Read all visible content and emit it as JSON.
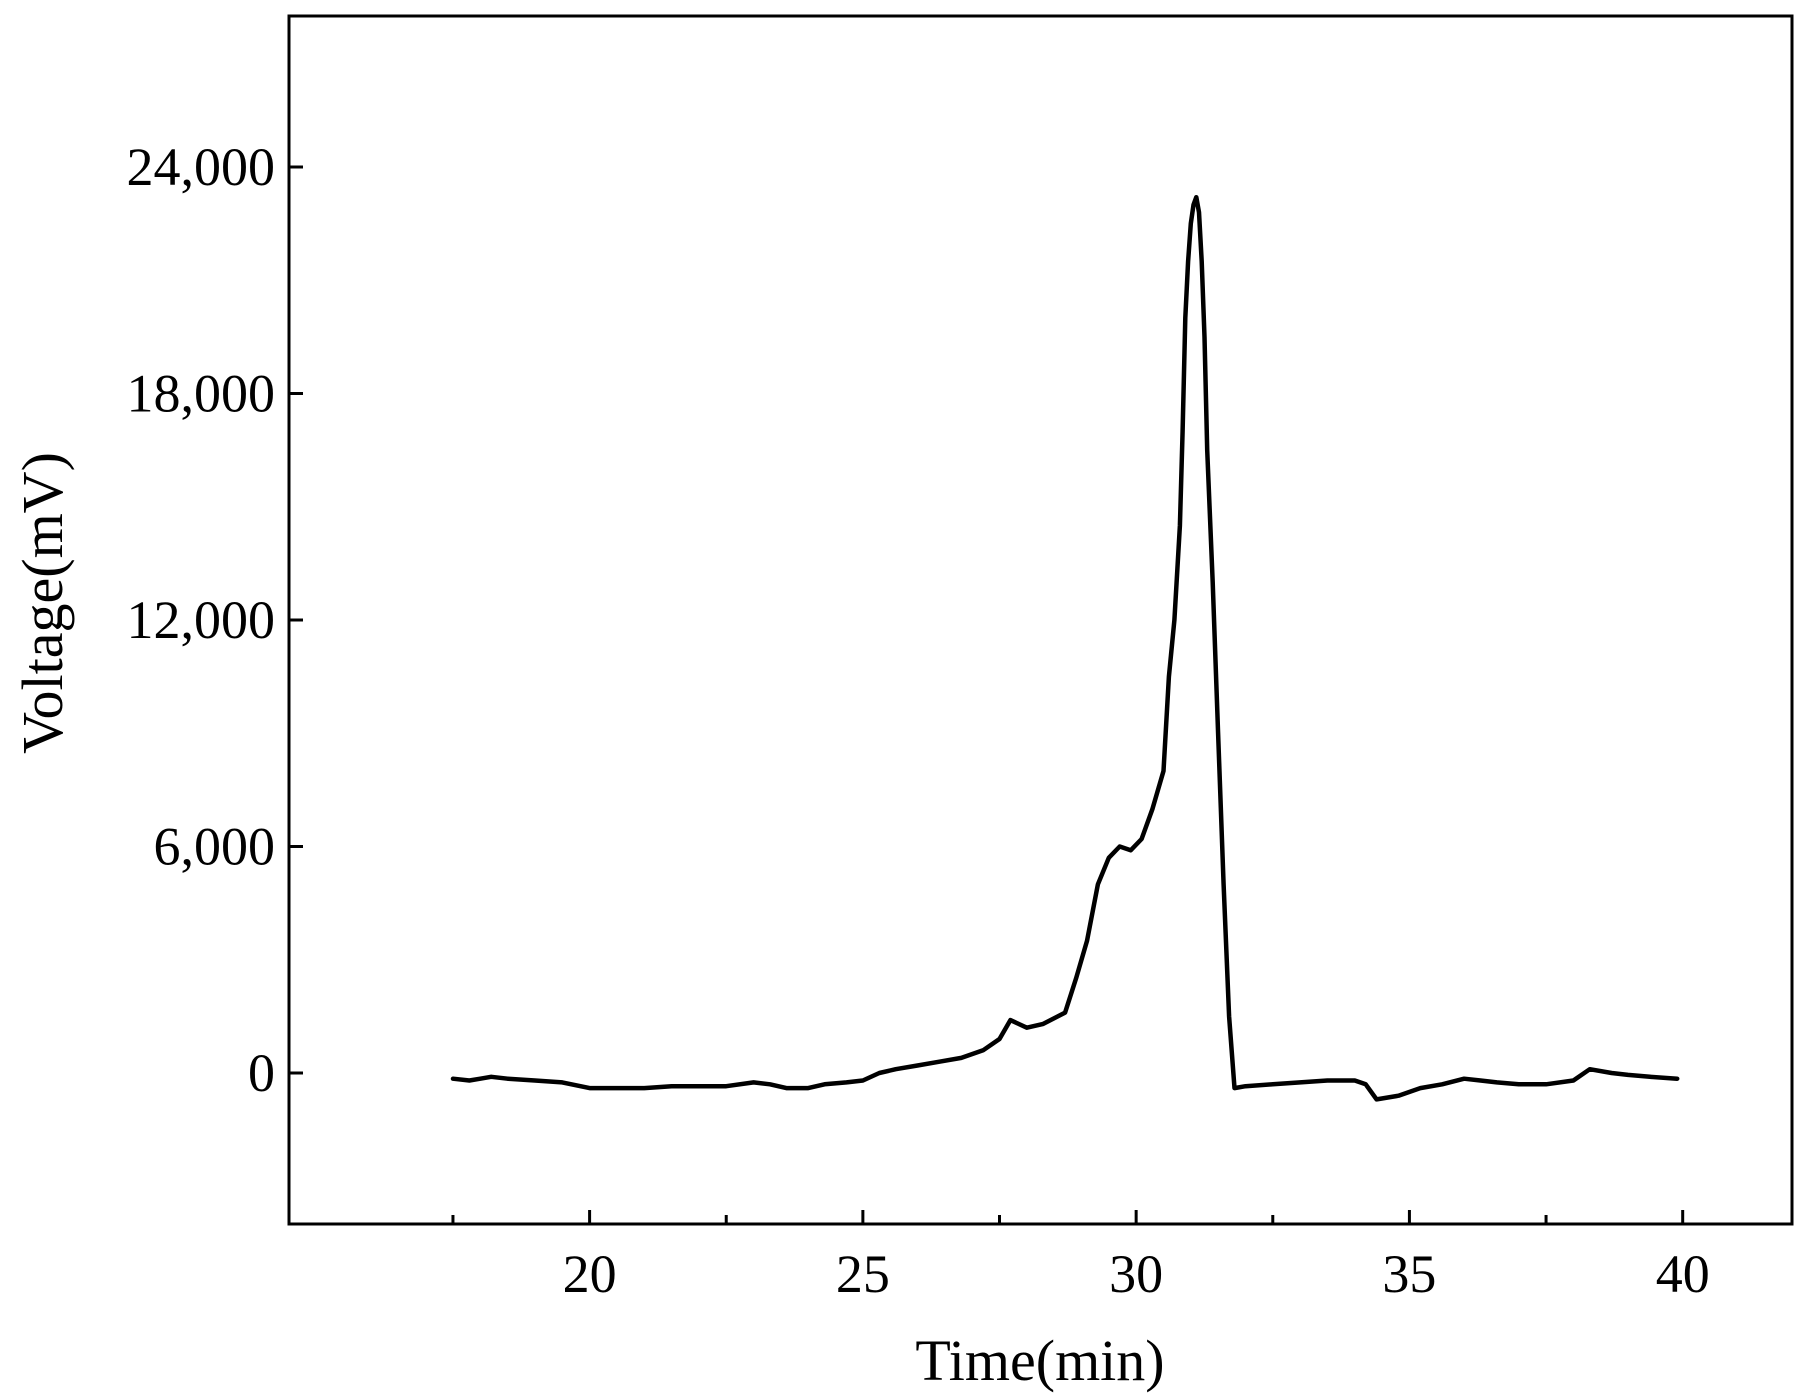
{
  "chart_data": {
    "type": "line",
    "title": "",
    "xlabel": "Time(min)",
    "ylabel": "Voltage(mV)",
    "xlim": [
      14.5,
      42
    ],
    "ylim": [
      -4000,
      28000
    ],
    "x_ticks": [
      20,
      25,
      30,
      35,
      40
    ],
    "x_tick_labels": [
      "20",
      "25",
      "30",
      "35",
      "40"
    ],
    "x_minor_ticks": [
      17.5,
      22.5,
      27.5,
      32.5,
      37.5
    ],
    "y_ticks": [
      0,
      6000,
      12000,
      18000,
      24000
    ],
    "y_tick_labels": [
      "0",
      "6,000",
      "12,000",
      "18,000",
      "24,000"
    ],
    "grid": false,
    "line_color": "#000000",
    "series": [
      {
        "x": [
          17.5,
          17.8,
          18.0,
          18.2,
          18.5,
          19.0,
          19.5,
          20.0,
          20.5,
          21.0,
          21.5,
          22.0,
          22.5,
          23.0,
          23.3,
          23.6,
          24.0,
          24.3,
          24.7,
          25.0,
          25.3,
          25.6,
          26.0,
          26.4,
          26.8,
          27.2,
          27.5,
          27.7,
          28.0,
          28.3,
          28.7,
          28.9,
          29.1,
          29.3,
          29.5,
          29.7,
          29.9,
          30.1,
          30.3,
          30.5,
          30.6,
          30.7,
          30.8,
          30.85,
          30.9,
          30.95,
          31.0,
          31.05,
          31.1,
          31.15,
          31.2,
          31.25,
          31.3,
          31.4,
          31.5,
          31.6,
          31.7,
          31.8,
          32.0,
          32.5,
          33.0,
          33.5,
          34.0,
          34.2,
          34.4,
          34.8,
          35.2,
          35.6,
          36.0,
          36.3,
          36.6,
          37.0,
          37.5,
          38.0,
          38.3,
          38.7,
          39.0,
          39.4,
          39.9
        ],
        "y": [
          -150,
          -200,
          -150,
          -100,
          -150,
          -200,
          -250,
          -400,
          -400,
          -400,
          -350,
          -350,
          -350,
          -250,
          -300,
          -400,
          -400,
          -300,
          -250,
          -200,
          0,
          100,
          200,
          300,
          400,
          600,
          900,
          1400,
          1200,
          1300,
          1600,
          2500,
          3500,
          5000,
          5700,
          6000,
          5900,
          6200,
          7000,
          8000,
          10500,
          12000,
          14500,
          17000,
          20000,
          21500,
          22500,
          23000,
          23200,
          22800,
          21500,
          19500,
          16500,
          13000,
          9000,
          5000,
          1500,
          -400,
          -350,
          -300,
          -250,
          -200,
          -200,
          -300,
          -700,
          -600,
          -400,
          -300,
          -150,
          -200,
          -250,
          -300,
          -300,
          -200,
          100,
          0,
          -50,
          -100,
          -150
        ]
      }
    ]
  }
}
